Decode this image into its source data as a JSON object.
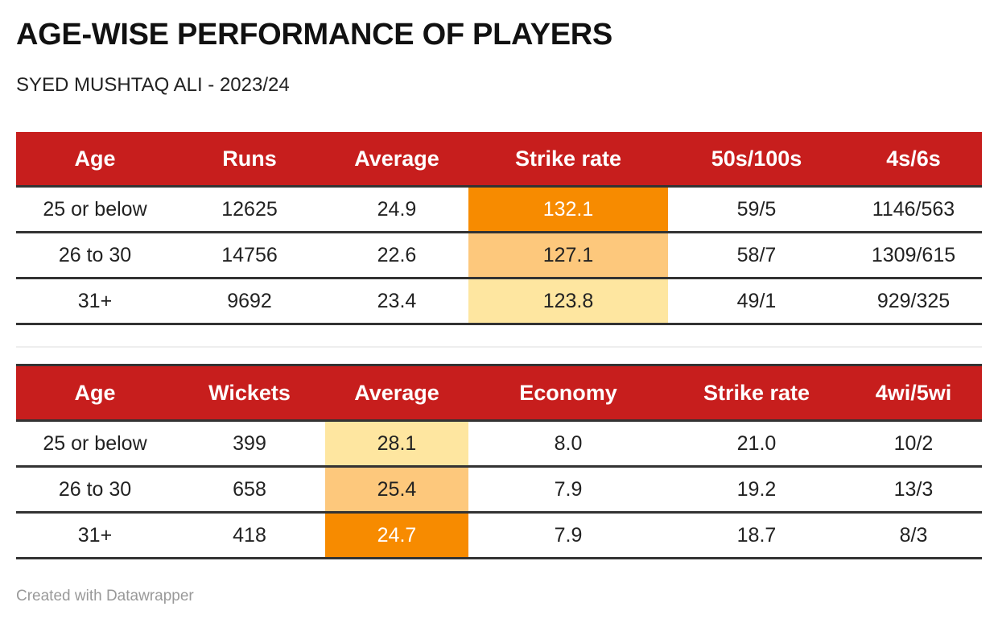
{
  "title": "AGE-WISE PERFORMANCE OF PLAYERS",
  "subtitle": "SYED MUSHTAQ ALI - 2023/24",
  "batting": {
    "headers": [
      "Age",
      "Runs",
      "Average",
      "Strike rate",
      "50s/100s",
      "4s/6s"
    ],
    "rows": [
      [
        "25 or below",
        "12625",
        "24.9",
        "132.1",
        "59/5",
        "1146/563"
      ],
      [
        "26 to 30",
        "14756",
        "22.6",
        "127.1",
        "58/7",
        "1309/615"
      ],
      [
        "31+",
        "9692",
        "23.4",
        "123.8",
        "49/1",
        "929/325"
      ]
    ]
  },
  "bowling": {
    "headers": [
      "Age",
      "Wickets",
      "Average",
      "Economy",
      "Strike rate",
      "4wi/5wi"
    ],
    "rows": [
      [
        "25 or below",
        "399",
        "28.1",
        "8.0",
        "21.0",
        "10/2"
      ],
      [
        "26 to 30",
        "658",
        "25.4",
        "7.9",
        "19.2",
        "13/3"
      ],
      [
        "31+",
        "418",
        "24.7",
        "7.9",
        "18.7",
        "8/3"
      ]
    ]
  },
  "highlight_colors": {
    "high": "#f78b00",
    "mid": "#fdc87c",
    "low": "#fee6a0"
  },
  "footer": "Created with Datawrapper"
}
